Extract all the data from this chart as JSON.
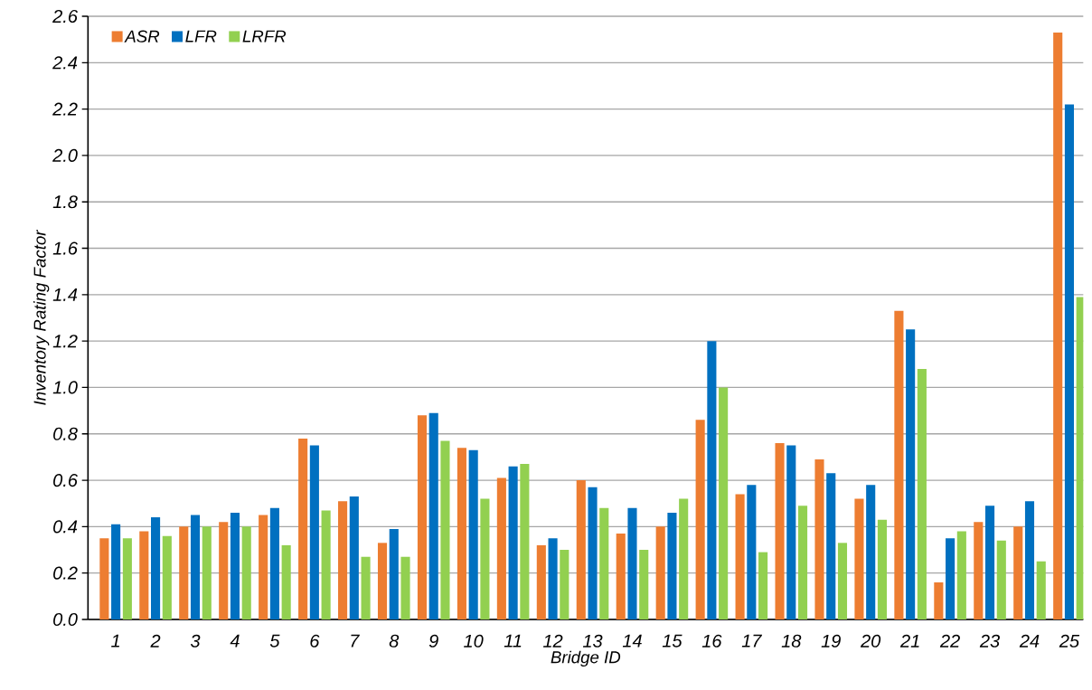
{
  "chart_data": {
    "type": "bar",
    "xlabel": "Bridge ID",
    "ylabel": "Inventory Rating Factor",
    "categories": [
      "1",
      "2",
      "3",
      "4",
      "5",
      "6",
      "7",
      "8",
      "9",
      "10",
      "11",
      "12",
      "13",
      "14",
      "15",
      "16",
      "17",
      "18",
      "19",
      "20",
      "21",
      "22",
      "23",
      "24",
      "25"
    ],
    "series": [
      {
        "name": "ASR",
        "color": "#ed7d31",
        "values": [
          0.35,
          0.38,
          0.4,
          0.42,
          0.45,
          0.78,
          0.51,
          0.33,
          0.88,
          0.74,
          0.61,
          0.32,
          0.6,
          0.37,
          0.4,
          0.86,
          0.54,
          0.76,
          0.69,
          0.52,
          1.33,
          0.16,
          0.42,
          0.4,
          2.53
        ]
      },
      {
        "name": "LFR",
        "color": "#0070c0",
        "values": [
          0.41,
          0.44,
          0.45,
          0.46,
          0.48,
          0.75,
          0.53,
          0.39,
          0.89,
          0.73,
          0.66,
          0.35,
          0.57,
          0.48,
          0.46,
          1.2,
          0.58,
          0.75,
          0.63,
          0.58,
          1.25,
          0.35,
          0.49,
          0.51,
          2.22
        ]
      },
      {
        "name": "LRFR",
        "color": "#92d050",
        "values": [
          0.35,
          0.36,
          0.4,
          0.4,
          0.32,
          0.47,
          0.27,
          0.27,
          0.77,
          0.52,
          0.67,
          0.3,
          0.48,
          0.3,
          0.52,
          1.0,
          0.29,
          0.49,
          0.33,
          0.43,
          1.08,
          0.38,
          0.34,
          0.25,
          1.39
        ]
      }
    ],
    "ylim": [
      0,
      2.6
    ],
    "yticks": [
      {
        "value": 0,
        "label": "0.0"
      },
      {
        "value": 0.2,
        "label": "0.2"
      },
      {
        "value": 0.4,
        "label": "0.4"
      },
      {
        "value": 0.6,
        "label": "0.6"
      },
      {
        "value": 0.8,
        "label": "0.8"
      },
      {
        "value": 1.0,
        "label": "1.0"
      },
      {
        "value": 1.2,
        "label": "1.2"
      },
      {
        "value": 1.4,
        "label": "1.4"
      },
      {
        "value": 1.6,
        "label": "1.6"
      },
      {
        "value": 1.8,
        "label": "1.8"
      },
      {
        "value": 2.0,
        "label": "2.0"
      },
      {
        "value": 2.2,
        "label": "2.2"
      },
      {
        "value": 2.4,
        "label": "2.4"
      },
      {
        "value": 2.6,
        "label": "2.6"
      }
    ],
    "grid": "y",
    "legend": "top left"
  }
}
